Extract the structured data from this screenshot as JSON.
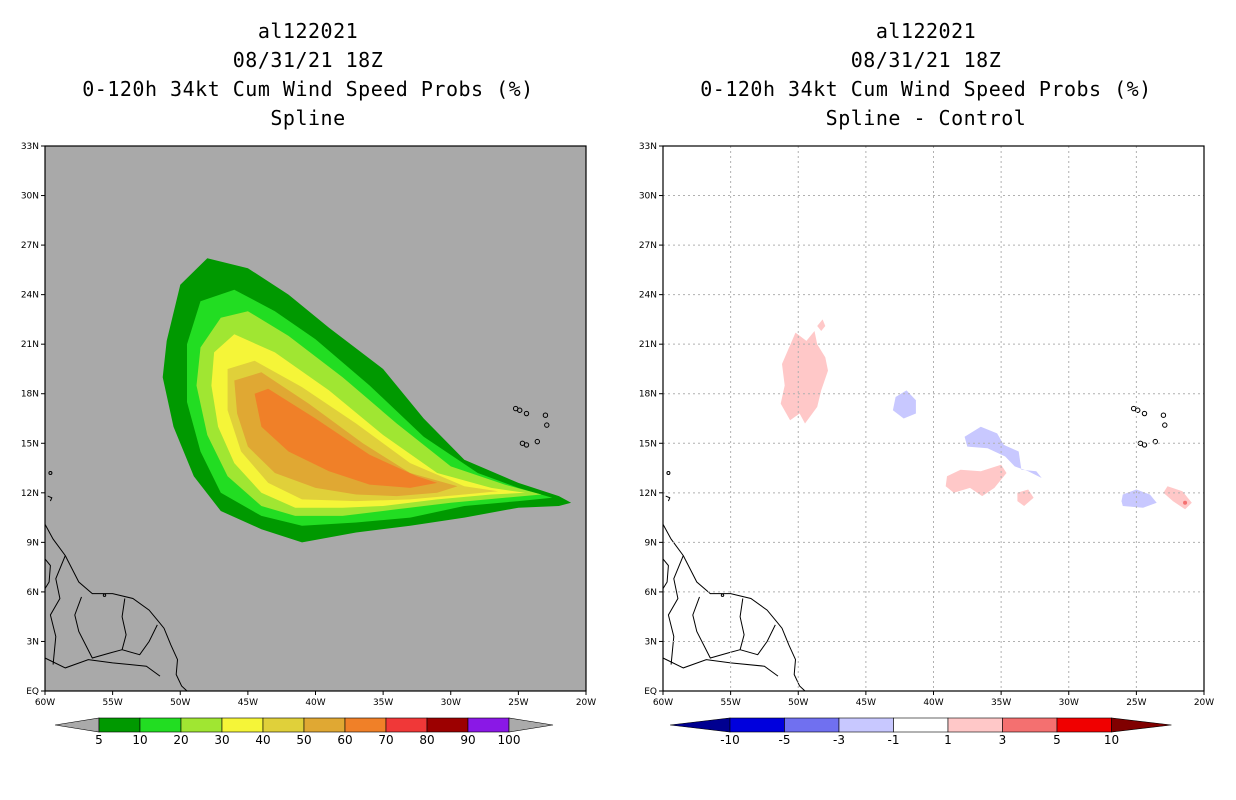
{
  "left": {
    "titles": {
      "storm_id": "al122021",
      "datetime": "08/31/21 18Z",
      "product": "0-120h 34kt Cum Wind Speed Probs (%)",
      "method": "Spline"
    },
    "colorbar": {
      "labels": [
        "5",
        "10",
        "20",
        "30",
        "40",
        "50",
        "60",
        "70",
        "80",
        "90",
        "100"
      ],
      "colors": [
        "#009900",
        "#22dd22",
        "#a0e632",
        "#f5f538",
        "#e0d03a",
        "#e0a833",
        "#f08028",
        "#f03838",
        "#9c0000",
        "#8a18e6"
      ],
      "arrow_color": "#aaaaaa"
    }
  },
  "right": {
    "titles": {
      "storm_id": "al122021",
      "datetime": "08/31/21 18Z",
      "product": "0-120h 34kt Cum Wind Speed Probs (%)",
      "method": "Spline - Control"
    },
    "colorbar": {
      "labels": [
        "-10",
        "-5",
        "-3",
        "-1",
        "1",
        "3",
        "5",
        "10"
      ],
      "colors": [
        "#0000dd",
        "#7070f0",
        "#c8c8ff",
        "#ffffff",
        "#ffc8c8",
        "#f47070",
        "#f00000"
      ],
      "low_arrow": "#000090",
      "high_arrow": "#800000"
    }
  },
  "chart_data": [
    {
      "type": "heatmap",
      "title": "0-120h 34kt Cum Wind Speed Probs (%) Spline",
      "xlim": [
        -60,
        -20
      ],
      "ylim": [
        0,
        33
      ],
      "x_ticks": [
        -60,
        -55,
        -50,
        -45,
        -40,
        -35,
        -30,
        -25,
        -20
      ],
      "x_tick_labels": [
        "60W",
        "55W",
        "50W",
        "45W",
        "40W",
        "35W",
        "30W",
        "25W",
        "20W"
      ],
      "y_ticks": [
        0,
        3,
        6,
        9,
        12,
        15,
        18,
        21,
        24,
        27,
        30,
        33
      ],
      "y_tick_labels": [
        "EQ",
        "3N",
        "6N",
        "9N",
        "12N",
        "15N",
        "18N",
        "21N",
        "24N",
        "27N",
        "30N",
        "33N"
      ],
      "background_color": "#a9a9a9",
      "grid": false,
      "levels": [
        {
          "label": "5",
          "color": "#009900",
          "polygon": [
            [
              -51,
              21.2
            ],
            [
              -50,
              24.6
            ],
            [
              -48,
              26.2
            ],
            [
              -45,
              25.6
            ],
            [
              -42,
              24.0
            ],
            [
              -39,
              22.0
            ],
            [
              -35,
              19.5
            ],
            [
              -32,
              16.5
            ],
            [
              -29,
              14.0
            ],
            [
              -25,
              12.6
            ],
            [
              -22,
              11.8
            ],
            [
              -21.1,
              11.4
            ],
            [
              -22,
              11.2
            ],
            [
              -25,
              11.1
            ],
            [
              -29,
              10.5
            ],
            [
              -33,
              10.0
            ],
            [
              -37,
              9.6
            ],
            [
              -41,
              9.0
            ],
            [
              -44,
              9.8
            ],
            [
              -47,
              10.9
            ],
            [
              -49,
              13.0
            ],
            [
              -50.5,
              16.0
            ],
            [
              -51.3,
              19.0
            ]
          ]
        },
        {
          "label": "10",
          "color": "#22dd22",
          "polygon": [
            [
              -49.5,
              21.0
            ],
            [
              -48.5,
              23.6
            ],
            [
              -46,
              24.3
            ],
            [
              -43,
              23.0
            ],
            [
              -40,
              21.3
            ],
            [
              -36,
              18.5
            ],
            [
              -32,
              15.4
            ],
            [
              -28,
              13.2
            ],
            [
              -25,
              12.3
            ],
            [
              -22.5,
              11.7
            ],
            [
              -25,
              11.5
            ],
            [
              -29,
              11.2
            ],
            [
              -33,
              10.5
            ],
            [
              -37,
              10.2
            ],
            [
              -41,
              10.0
            ],
            [
              -44,
              10.6
            ],
            [
              -47,
              12.0
            ],
            [
              -48.5,
              14.5
            ],
            [
              -49.5,
              17.5
            ]
          ]
        },
        {
          "label": "20",
          "color": "#a0e632",
          "polygon": [
            [
              -48.5,
              20.8
            ],
            [
              -47,
              22.6
            ],
            [
              -45,
              23.0
            ],
            [
              -42,
              21.5
            ],
            [
              -38,
              19.0
            ],
            [
              -34,
              16.2
            ],
            [
              -30,
              13.6
            ],
            [
              -26,
              12.5
            ],
            [
              -23.3,
              11.9
            ],
            [
              -26,
              11.7
            ],
            [
              -30,
              11.4
            ],
            [
              -34,
              11.0
            ],
            [
              -38,
              10.6
            ],
            [
              -41.5,
              10.6
            ],
            [
              -44,
              11.2
            ],
            [
              -46.5,
              13.0
            ],
            [
              -48,
              15.5
            ],
            [
              -48.8,
              18.5
            ]
          ]
        },
        {
          "label": "30",
          "color": "#f5f538",
          "polygon": [
            [
              -47.5,
              20.5
            ],
            [
              -46,
              21.6
            ],
            [
              -43,
              20.5
            ],
            [
              -39,
              18.2
            ],
            [
              -35,
              15.5
            ],
            [
              -31,
              13.2
            ],
            [
              -27,
              12.3
            ],
            [
              -24.5,
              12.0
            ],
            [
              -27,
              11.9
            ],
            [
              -31,
              11.6
            ],
            [
              -35,
              11.2
            ],
            [
              -38,
              11.1
            ],
            [
              -41.5,
              11.1
            ],
            [
              -44,
              12.0
            ],
            [
              -46,
              13.8
            ],
            [
              -47.2,
              16.0
            ],
            [
              -47.7,
              18.5
            ]
          ]
        },
        {
          "label": "40",
          "color": "#e0d03a",
          "polygon": [
            [
              -46.5,
              19.5
            ],
            [
              -44.5,
              20.0
            ],
            [
              -41,
              18.4
            ],
            [
              -37,
              16.2
            ],
            [
              -33,
              13.8
            ],
            [
              -29,
              12.4
            ],
            [
              -26.5,
              12.1
            ],
            [
              -29,
              11.9
            ],
            [
              -33,
              11.6
            ],
            [
              -37,
              11.5
            ],
            [
              -41,
              11.6
            ],
            [
              -43.5,
              12.6
            ],
            [
              -45.5,
              14.5
            ],
            [
              -46.5,
              17.0
            ]
          ]
        },
        {
          "label": "50",
          "color": "#e0a833",
          "polygon": [
            [
              -46,
              18.8
            ],
            [
              -44,
              19.3
            ],
            [
              -40.5,
              17.4
            ],
            [
              -36.5,
              15.0
            ],
            [
              -33,
              13.2
            ],
            [
              -29.5,
              12.4
            ],
            [
              -31,
              12.0
            ],
            [
              -34,
              11.8
            ],
            [
              -37,
              11.9
            ],
            [
              -40,
              12.3
            ],
            [
              -43,
              13.2
            ],
            [
              -45,
              14.8
            ],
            [
              -45.8,
              16.8
            ]
          ]
        },
        {
          "label": "60",
          "color": "#f08028",
          "polygon": [
            [
              -44.5,
              18.0
            ],
            [
              -43.5,
              18.3
            ],
            [
              -40,
              16.5
            ],
            [
              -36,
              14.3
            ],
            [
              -32.5,
              13.0
            ],
            [
              -31,
              12.6
            ],
            [
              -33,
              12.3
            ],
            [
              -36,
              12.5
            ],
            [
              -39,
              13.3
            ],
            [
              -42,
              14.5
            ],
            [
              -44,
              16.0
            ]
          ]
        }
      ],
      "landmasses": [
        "South America",
        "Lesser Antilles",
        "Cabo Verde"
      ]
    },
    {
      "type": "heatmap",
      "title": "0-120h 34kt Cum Wind Speed Probs (%) Spline - Control",
      "xlim": [
        -60,
        -20
      ],
      "ylim": [
        0,
        33
      ],
      "x_ticks": [
        -60,
        -55,
        -50,
        -45,
        -40,
        -35,
        -30,
        -25,
        -20
      ],
      "x_tick_labels": [
        "60W",
        "55W",
        "50W",
        "45W",
        "40W",
        "35W",
        "30W",
        "25W",
        "20W"
      ],
      "y_ticks": [
        0,
        3,
        6,
        9,
        12,
        15,
        18,
        21,
        24,
        27,
        30,
        33
      ],
      "y_tick_labels": [
        "EQ",
        "3N",
        "6N",
        "9N",
        "12N",
        "15N",
        "18N",
        "21N",
        "24N",
        "27N",
        "30N",
        "33N"
      ],
      "background_color": "#ffffff",
      "grid": true,
      "regions": [
        {
          "sign": "positive",
          "level": "1 to 3",
          "color": "#ffc8c8",
          "polygon": [
            [
              -51.2,
              19.8
            ],
            [
              -50.2,
              21.7
            ],
            [
              -49.4,
              21.2
            ],
            [
              -48.8,
              21.8
            ],
            [
              -48.6,
              21.0
            ],
            [
              -48.0,
              20.2
            ],
            [
              -47.8,
              19.4
            ],
            [
              -48.3,
              18.2
            ],
            [
              -48.6,
              17.2
            ],
            [
              -49.5,
              16.2
            ],
            [
              -49.9,
              16.8
            ],
            [
              -50.6,
              16.4
            ],
            [
              -51.3,
              17.4
            ],
            [
              -51.0,
              18.5
            ]
          ]
        },
        {
          "sign": "positive",
          "level": "1 to 3",
          "color": "#ffc8c8",
          "polygon": [
            [
              -48.6,
              22.1
            ],
            [
              -48.2,
              22.5
            ],
            [
              -48.0,
              22.1
            ],
            [
              -48.3,
              21.8
            ]
          ]
        },
        {
          "sign": "positive",
          "level": "1 to 3",
          "color": "#ffc8c8",
          "polygon": [
            [
              -39.0,
              13.0
            ],
            [
              -38.0,
              13.4
            ],
            [
              -36.5,
              13.3
            ],
            [
              -35.0,
              13.7
            ],
            [
              -34.6,
              13.2
            ],
            [
              -35.5,
              12.3
            ],
            [
              -36.4,
              11.8
            ],
            [
              -37.3,
              12.3
            ],
            [
              -38.5,
              12.0
            ],
            [
              -39.1,
              12.4
            ]
          ]
        },
        {
          "sign": "positive",
          "level": "1 to 3",
          "color": "#ffc8c8",
          "polygon": [
            [
              -33.8,
              12.0
            ],
            [
              -33.0,
              12.2
            ],
            [
              -32.6,
              11.7
            ],
            [
              -33.3,
              11.2
            ],
            [
              -33.8,
              11.5
            ]
          ]
        },
        {
          "sign": "positive",
          "level": "1 to 3",
          "color": "#ffc8c8",
          "polygon": [
            [
              -22.7,
              12.4
            ],
            [
              -21.6,
              12.1
            ],
            [
              -20.9,
              11.4
            ],
            [
              -21.4,
              11.0
            ],
            [
              -22.3,
              11.5
            ],
            [
              -23.0,
              12.0
            ]
          ]
        },
        {
          "sign": "negative",
          "level": "-3 to -1",
          "color": "#c8c8ff",
          "polygon": [
            [
              -42.8,
              17.8
            ],
            [
              -42.0,
              18.2
            ],
            [
              -41.3,
              17.6
            ],
            [
              -41.3,
              16.8
            ],
            [
              -42.2,
              16.5
            ],
            [
              -43.0,
              17.0
            ]
          ]
        },
        {
          "sign": "negative",
          "level": "-3 to -1",
          "color": "#c8c8ff",
          "polygon": [
            [
              -37.7,
              15.4
            ],
            [
              -36.5,
              16.0
            ],
            [
              -35.3,
              15.6
            ],
            [
              -34.8,
              14.9
            ],
            [
              -33.7,
              14.5
            ],
            [
              -33.5,
              13.4
            ],
            [
              -32.4,
              13.3
            ],
            [
              -32.0,
              12.9
            ],
            [
              -33.0,
              13.3
            ],
            [
              -34.0,
              13.6
            ],
            [
              -34.7,
              14.2
            ],
            [
              -36.0,
              14.7
            ],
            [
              -37.5,
              14.8
            ]
          ]
        },
        {
          "sign": "negative",
          "level": "-3 to -1",
          "color": "#c8c8ff",
          "polygon": [
            [
              -26.0,
              11.9
            ],
            [
              -25.0,
              12.2
            ],
            [
              -24.0,
              11.9
            ],
            [
              -23.5,
              11.4
            ],
            [
              -24.5,
              11.1
            ],
            [
              -26.0,
              11.2
            ],
            [
              -26.1,
              11.5
            ]
          ]
        }
      ],
      "landmasses": [
        "South America",
        "Lesser Antilles",
        "Cabo Verde"
      ]
    }
  ]
}
